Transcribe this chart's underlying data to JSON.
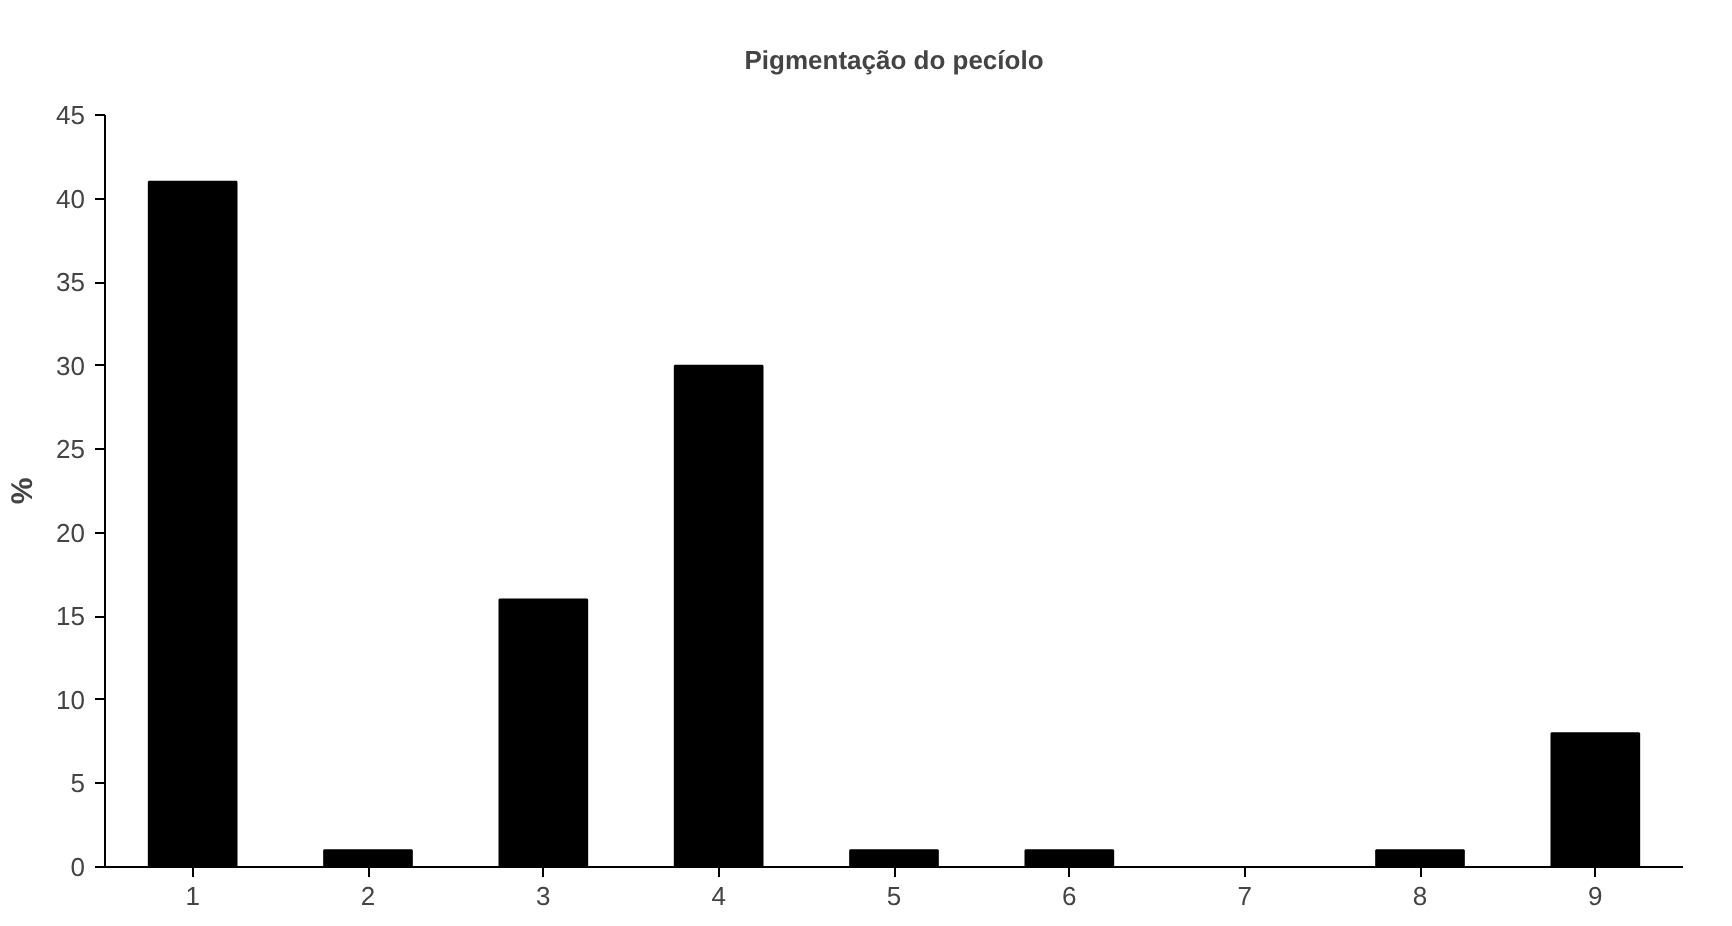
{
  "chart_data": {
    "type": "bar",
    "title": "Pigmentação do pecíolo",
    "ylabel": "%",
    "categories": [
      "1",
      "2",
      "3",
      "4",
      "5",
      "6",
      "7",
      "8",
      "9"
    ],
    "values": [
      41,
      1,
      16,
      30,
      1,
      1,
      0,
      1,
      8
    ],
    "color": "#000000",
    "ylim": [
      0,
      45
    ],
    "yticks": [
      0,
      5,
      10,
      15,
      20,
      25,
      30,
      35,
      40,
      45
    ],
    "grid": false
  }
}
